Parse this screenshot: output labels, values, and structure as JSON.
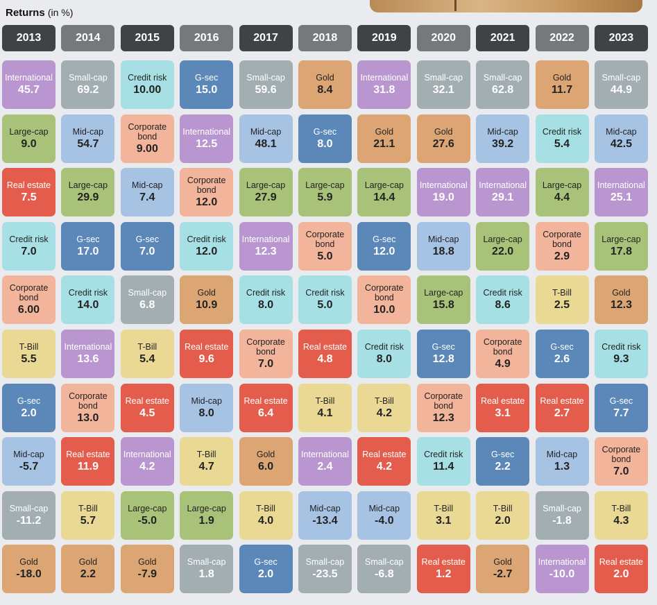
{
  "title": {
    "main": "Returns",
    "unit": "(in %)"
  },
  "colors": {
    "International": "#b996cf",
    "Small-cap": "#a2aeb2",
    "Credit risk": "#a7e0e4",
    "G-sec": "#5b88b8",
    "Gold": "#dba673",
    "Large-cap": "#a9c27a",
    "Mid-cap": "#a7c3e3",
    "Corporate bond": "#f2b49a",
    "Real estate": "#e45c4c",
    "T-Bill": "#ead995"
  },
  "white_text": [
    "International",
    "Small-cap",
    "G-sec",
    "Real estate"
  ],
  "chart_data": {
    "type": "table",
    "years": [
      "2013",
      "2014",
      "2015",
      "2016",
      "2017",
      "2018",
      "2019",
      "2020",
      "2021",
      "2022",
      "2023"
    ],
    "columns": [
      [
        [
          "International",
          "45.7"
        ],
        [
          "Large-cap",
          "9.0"
        ],
        [
          "Real estate",
          "7.5"
        ],
        [
          "Credit risk",
          "7.0"
        ],
        [
          "Corporate bond",
          "6.00"
        ],
        [
          "T-Bill",
          "5.5"
        ],
        [
          "G-sec",
          "2.0"
        ],
        [
          "Mid-cap",
          "-5.7"
        ],
        [
          "Small-cap",
          "-11.2"
        ],
        [
          "Gold",
          "-18.0"
        ]
      ],
      [
        [
          "Small-cap",
          "69.2"
        ],
        [
          "Mid-cap",
          "54.7"
        ],
        [
          "Large-cap",
          "29.9"
        ],
        [
          "G-sec",
          "17.0"
        ],
        [
          "Credit risk",
          "14.0"
        ],
        [
          "International",
          "13.6"
        ],
        [
          "Corporate bond",
          "13.0"
        ],
        [
          "Real estate",
          "11.9"
        ],
        [
          "T-Bill",
          "5.7"
        ],
        [
          "Gold",
          "2.2"
        ]
      ],
      [
        [
          "Credit risk",
          "10.00"
        ],
        [
          "Corporate bond",
          "9.00"
        ],
        [
          "Mid-cap",
          "7.4"
        ],
        [
          "G-sec",
          "7.0"
        ],
        [
          "Small-cap",
          "6.8"
        ],
        [
          "T-Bill",
          "5.4"
        ],
        [
          "Real estate",
          "4.5"
        ],
        [
          "International",
          "4.2"
        ],
        [
          "Large-cap",
          "-5.0"
        ],
        [
          "Gold",
          "-7.9"
        ]
      ],
      [
        [
          "G-sec",
          "15.0"
        ],
        [
          "International",
          "12.5"
        ],
        [
          "Corporate bond",
          "12.0"
        ],
        [
          "Credit risk",
          "12.0"
        ],
        [
          "Gold",
          "10.9"
        ],
        [
          "Real estate",
          "9.6"
        ],
        [
          "Mid-cap",
          "8.0"
        ],
        [
          "T-Bill",
          "4.7"
        ],
        [
          "Large-cap",
          "1.9"
        ],
        [
          "Small-cap",
          "1.8"
        ]
      ],
      [
        [
          "Small-cap",
          "59.6"
        ],
        [
          "Mid-cap",
          "48.1"
        ],
        [
          "Large-cap",
          "27.9"
        ],
        [
          "International",
          "12.3"
        ],
        [
          "Credit risk",
          "8.0"
        ],
        [
          "Corporate bond",
          "7.0"
        ],
        [
          "Real estate",
          "6.4"
        ],
        [
          "Gold",
          "6.0"
        ],
        [
          "T-Bill",
          "4.0"
        ],
        [
          "G-sec",
          "2.0"
        ]
      ],
      [
        [
          "Gold",
          "8.4"
        ],
        [
          "G-sec",
          "8.0"
        ],
        [
          "Large-cap",
          "5.9"
        ],
        [
          "Corporate bond",
          "5.0"
        ],
        [
          "Credit risk",
          "5.0"
        ],
        [
          "Real estate",
          "4.8"
        ],
        [
          "T-Bill",
          "4.1"
        ],
        [
          "International",
          "2.4"
        ],
        [
          "Mid-cap",
          "-13.4"
        ],
        [
          "Small-cap",
          "-23.5"
        ]
      ],
      [
        [
          "International",
          "31.8"
        ],
        [
          "Gold",
          "21.1"
        ],
        [
          "Large-cap",
          "14.4"
        ],
        [
          "G-sec",
          "12.0"
        ],
        [
          "Corporate bond",
          "10.0"
        ],
        [
          "Credit risk",
          "8.0"
        ],
        [
          "T-Bill",
          "4.2"
        ],
        [
          "Real estate",
          "4.2"
        ],
        [
          "Mid-cap",
          "-4.0"
        ],
        [
          "Small-cap",
          "-6.8"
        ]
      ],
      [
        [
          "Small-cap",
          "32.1"
        ],
        [
          "Gold",
          "27.6"
        ],
        [
          "International",
          "19.0"
        ],
        [
          "Mid-cap",
          "18.8"
        ],
        [
          "Large-cap",
          "15.8"
        ],
        [
          "G-sec",
          "12.8"
        ],
        [
          "Corporate bond",
          "12.3"
        ],
        [
          "Credit risk",
          "11.4"
        ],
        [
          "T-Bill",
          "3.1"
        ],
        [
          "Real estate",
          "1.2"
        ]
      ],
      [
        [
          "Small-cap",
          "62.8"
        ],
        [
          "Mid-cap",
          "39.2"
        ],
        [
          "International",
          "29.1"
        ],
        [
          "Large-cap",
          "22.0"
        ],
        [
          "Credit risk",
          "8.6"
        ],
        [
          "Corporate bond",
          "4.9"
        ],
        [
          "Real estate",
          "3.1"
        ],
        [
          "G-sec",
          "2.2"
        ],
        [
          "T-Bill",
          "2.0"
        ],
        [
          "Gold",
          "-2.7"
        ]
      ],
      [
        [
          "Gold",
          "11.7"
        ],
        [
          "Credit risk",
          "5.4"
        ],
        [
          "Large-cap",
          "4.4"
        ],
        [
          "Corporate bond",
          "2.9"
        ],
        [
          "T-Bill",
          "2.5"
        ],
        [
          "G-sec",
          "2.6"
        ],
        [
          "Real estate",
          "2.7"
        ],
        [
          "Mid-cap",
          "1.3"
        ],
        [
          "Small-cap",
          "-1.8"
        ],
        [
          "International",
          "-10.0"
        ]
      ],
      [
        [
          "Small-cap",
          "44.9"
        ],
        [
          "Mid-cap",
          "42.5"
        ],
        [
          "International",
          "25.1"
        ],
        [
          "Large-cap",
          "17.8"
        ],
        [
          "Gold",
          "12.3"
        ],
        [
          "Credit risk",
          "9.3"
        ],
        [
          "G-sec",
          "7.7"
        ],
        [
          "Corporate bond",
          "7.0"
        ],
        [
          "T-Bill",
          "4.3"
        ],
        [
          "Real estate",
          "2.0"
        ]
      ]
    ]
  }
}
